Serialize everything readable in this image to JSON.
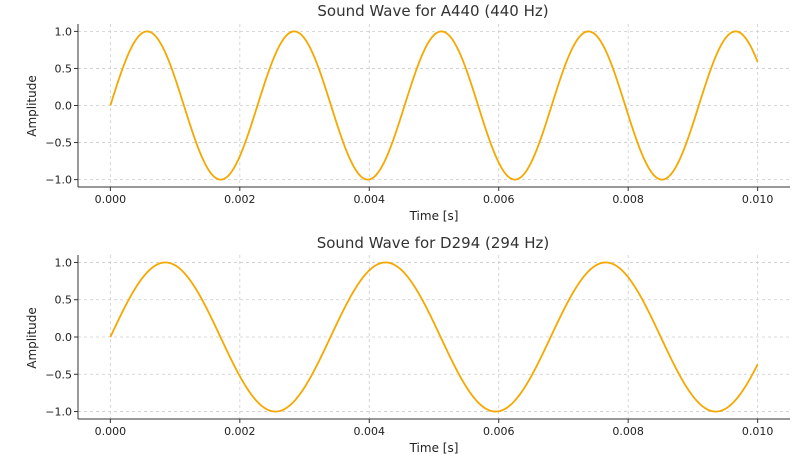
{
  "chart_data": [
    {
      "type": "line",
      "title": "Sound Wave for A440 (440 Hz)",
      "xlabel": "Time [s]",
      "ylabel": "Amplitude",
      "xlim": [
        -0.0005,
        0.0105
      ],
      "ylim": [
        -1.1,
        1.1
      ],
      "xticks": [
        0.0,
        0.002,
        0.004,
        0.006,
        0.008,
        0.01
      ],
      "xtick_labels": [
        "0.000",
        "0.002",
        "0.004",
        "0.006",
        "0.008",
        "0.010"
      ],
      "yticks": [
        1.0,
        0.5,
        0.0,
        -0.5,
        -1.0
      ],
      "ytick_labels": [
        "1.0",
        "0.5",
        "0.0",
        "−0.5",
        "−1.0"
      ],
      "grid": true,
      "series": [
        {
          "function": "sine",
          "frequency_hz": 440,
          "amplitude": 1.0,
          "x_range": [
            0,
            0.01
          ],
          "color": "#F5A800"
        }
      ]
    },
    {
      "type": "line",
      "title": "Sound Wave for D294 (294 Hz)",
      "xlabel": "Time [s]",
      "ylabel": "Amplitude",
      "xlim": [
        -0.0005,
        0.0105
      ],
      "ylim": [
        -1.1,
        1.1
      ],
      "xticks": [
        0.0,
        0.002,
        0.004,
        0.006,
        0.008,
        0.01
      ],
      "xtick_labels": [
        "0.000",
        "0.002",
        "0.004",
        "0.006",
        "0.008",
        "0.010"
      ],
      "yticks": [
        1.0,
        0.5,
        0.0,
        -0.5,
        -1.0
      ],
      "ytick_labels": [
        "1.0",
        "0.5",
        "0.0",
        "−0.5",
        "−1.0"
      ],
      "grid": true,
      "series": [
        {
          "function": "sine",
          "frequency_hz": 294,
          "amplitude": 1.0,
          "x_range": [
            0,
            0.01
          ],
          "color": "#F5A800"
        }
      ]
    }
  ]
}
